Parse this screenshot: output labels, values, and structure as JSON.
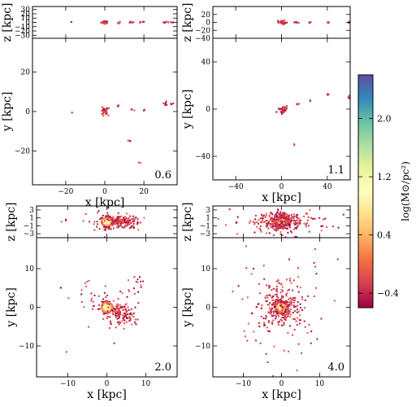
{
  "chart_data": {
    "type": "heatmap",
    "description_units": "surface density maps; position in kpc, color log(M_sun/pc^2)",
    "colorbar": {
      "label": "log(M⊙/pc²)",
      "range": [
        -0.6,
        2.6
      ],
      "ticks": [
        "−0.4",
        "0.4",
        "1.2",
        "2.0"
      ],
      "tick_values": [
        -0.4,
        0.4,
        1.2,
        2.0
      ],
      "colormap": [
        "#9e0142",
        "#d53e4f",
        "#f46d43",
        "#fdae61",
        "#fee08b",
        "#ffffbf",
        "#e6f598",
        "#abdda4",
        "#66c2a5",
        "#3288bd",
        "#5e4fa2"
      ]
    },
    "panels": [
      {
        "id": "p1",
        "time_label": "0.6",
        "xlabel": "x [kpc]",
        "ylabel": "y [kpc]",
        "zlabel": "z [kpc]",
        "xlim": [
          -37,
          37
        ],
        "ylim": [
          -37,
          37
        ],
        "zlim": [
          -37,
          37
        ],
        "xticks": [
          "−20",
          "0",
          "20"
        ],
        "xtick_values": [
          -20,
          0,
          20
        ],
        "yticks": [
          "20",
          "0",
          "−20"
        ],
        "ytick_values": [
          20,
          0,
          -20
        ],
        "zticks": [
          "30",
          "20",
          "10",
          "0",
          "−10",
          "−20",
          "−30"
        ],
        "ztick_values": [
          30,
          20,
          10,
          0,
          -10,
          -20,
          -30
        ],
        "clusters": [
          {
            "x": 0,
            "y": 0,
            "spread": 0.9,
            "n": 40,
            "z_spread": 1.5
          },
          {
            "x": 7,
            "y": 3,
            "spread": 0.5,
            "n": 6,
            "z_spread": 1
          },
          {
            "x": 14,
            "y": 1,
            "spread": 0.4,
            "n": 4,
            "z_spread": 1
          },
          {
            "x": 20,
            "y": 1,
            "spread": 0.4,
            "n": 4,
            "z_spread": 1
          },
          {
            "x": 31,
            "y": 4,
            "spread": 0.6,
            "n": 8,
            "z_spread": 1
          },
          {
            "x": 34,
            "y": 4,
            "spread": 0.4,
            "n": 4,
            "z_spread": 1
          },
          {
            "x": 13,
            "y": -15,
            "spread": 0.3,
            "n": 3,
            "z_spread": 1
          },
          {
            "x": 18,
            "y": -26,
            "spread": 0.3,
            "n": 2,
            "z_spread": 1
          },
          {
            "x": -17,
            "y": 0,
            "spread": 0.3,
            "n": 1,
            "z_spread": 1
          }
        ]
      },
      {
        "id": "p2",
        "time_label": "1.1",
        "xlabel": "x [kpc]",
        "ylabel": "y [kpc]",
        "zlabel": "z [kpc]",
        "xlim": [
          -60,
          60
        ],
        "ylim": [
          -60,
          60
        ],
        "zlim": [
          -40,
          40
        ],
        "xticks": [
          "−40",
          "0",
          "40"
        ],
        "xtick_values": [
          -40,
          0,
          40
        ],
        "yticks": [
          "40",
          "0",
          "−40"
        ],
        "ytick_values": [
          40,
          0,
          -40
        ],
        "zticks": [
          "20",
          "0",
          "−20",
          "−40"
        ],
        "ztick_values": [
          20,
          0,
          -20,
          -40
        ],
        "clusters": [
          {
            "x": 1,
            "y": 0,
            "spread": 1.6,
            "n": 45,
            "z_spread": 1.8
          },
          {
            "x": 14,
            "y": 4,
            "spread": 0.6,
            "n": 4,
            "z_spread": 1
          },
          {
            "x": 25,
            "y": 7,
            "spread": 0.6,
            "n": 4,
            "z_spread": 1
          },
          {
            "x": 41,
            "y": 12,
            "spread": 0.6,
            "n": 5,
            "z_spread": 1
          },
          {
            "x": 59,
            "y": 10,
            "spread": 0.8,
            "n": 6,
            "z_spread": 1
          },
          {
            "x": 11,
            "y": -30,
            "spread": 0.4,
            "n": 2,
            "z_spread": 1
          }
        ]
      },
      {
        "id": "p3",
        "time_label": "2.0",
        "xlabel": "x [kpc]",
        "ylabel": "y [kpc]",
        "zlabel": "z [kpc]",
        "xlim": [
          -18,
          18
        ],
        "ylim": [
          -18,
          18
        ],
        "zlim": [
          -4,
          4
        ],
        "xticks": [
          "−10",
          "0",
          "10"
        ],
        "xtick_values": [
          -10,
          0,
          10
        ],
        "yticks": [
          "10",
          "0",
          "−10"
        ],
        "ytick_values": [
          10,
          0,
          -10
        ],
        "zticks": [
          "3",
          "1",
          "−1",
          "−3"
        ],
        "ztick_values": [
          3,
          1,
          -1,
          -3
        ],
        "clusters": [
          {
            "x": 0,
            "y": 0,
            "spread": 0.6,
            "n": 260,
            "z_spread": 0.7,
            "core": true
          },
          {
            "x": 3,
            "y": -1,
            "spread": 1.1,
            "n": 70,
            "z_spread": 0.5
          },
          {
            "x": 5,
            "y": -2,
            "spread": 1.6,
            "n": 55,
            "z_spread": 0.8
          },
          {
            "x": 7,
            "y": 6,
            "spread": 1.2,
            "n": 14,
            "z_spread": 1.0
          },
          {
            "x": 0,
            "y": 0,
            "spread": 3.5,
            "n": 40,
            "z_spread": 1.2
          },
          {
            "x": -11,
            "y": 4,
            "spread": 1.0,
            "n": 2,
            "z_spread": 1
          },
          {
            "x": -10,
            "y": -12,
            "spread": 0.5,
            "n": 1,
            "z_spread": 1
          }
        ]
      },
      {
        "id": "p4",
        "time_label": "4.0",
        "xlabel": "x [kpc]",
        "ylabel": "y [kpc]",
        "zlabel": "z [kpc]",
        "xlim": [
          -18,
          18
        ],
        "ylim": [
          -18,
          18
        ],
        "zlim": [
          -4,
          4
        ],
        "xticks": [
          "−10",
          "0",
          "10"
        ],
        "xtick_values": [
          -10,
          0,
          10
        ],
        "yticks": [
          "10",
          "0",
          "−10"
        ],
        "ytick_values": [
          10,
          0,
          -10
        ],
        "zticks": [
          "3",
          "1",
          "−1",
          "−3"
        ],
        "ztick_values": [
          3,
          1,
          -1,
          -3
        ],
        "clusters": [
          {
            "x": 0,
            "y": 0,
            "spread": 0.8,
            "n": 320,
            "z_spread": 0.8,
            "core": true
          },
          {
            "x": 0,
            "y": 0,
            "spread": 2.6,
            "n": 190,
            "z_spread": 1.2
          },
          {
            "x": 0,
            "y": 0,
            "spread": 6.5,
            "n": 110,
            "z_spread": 1.8
          }
        ]
      }
    ]
  }
}
